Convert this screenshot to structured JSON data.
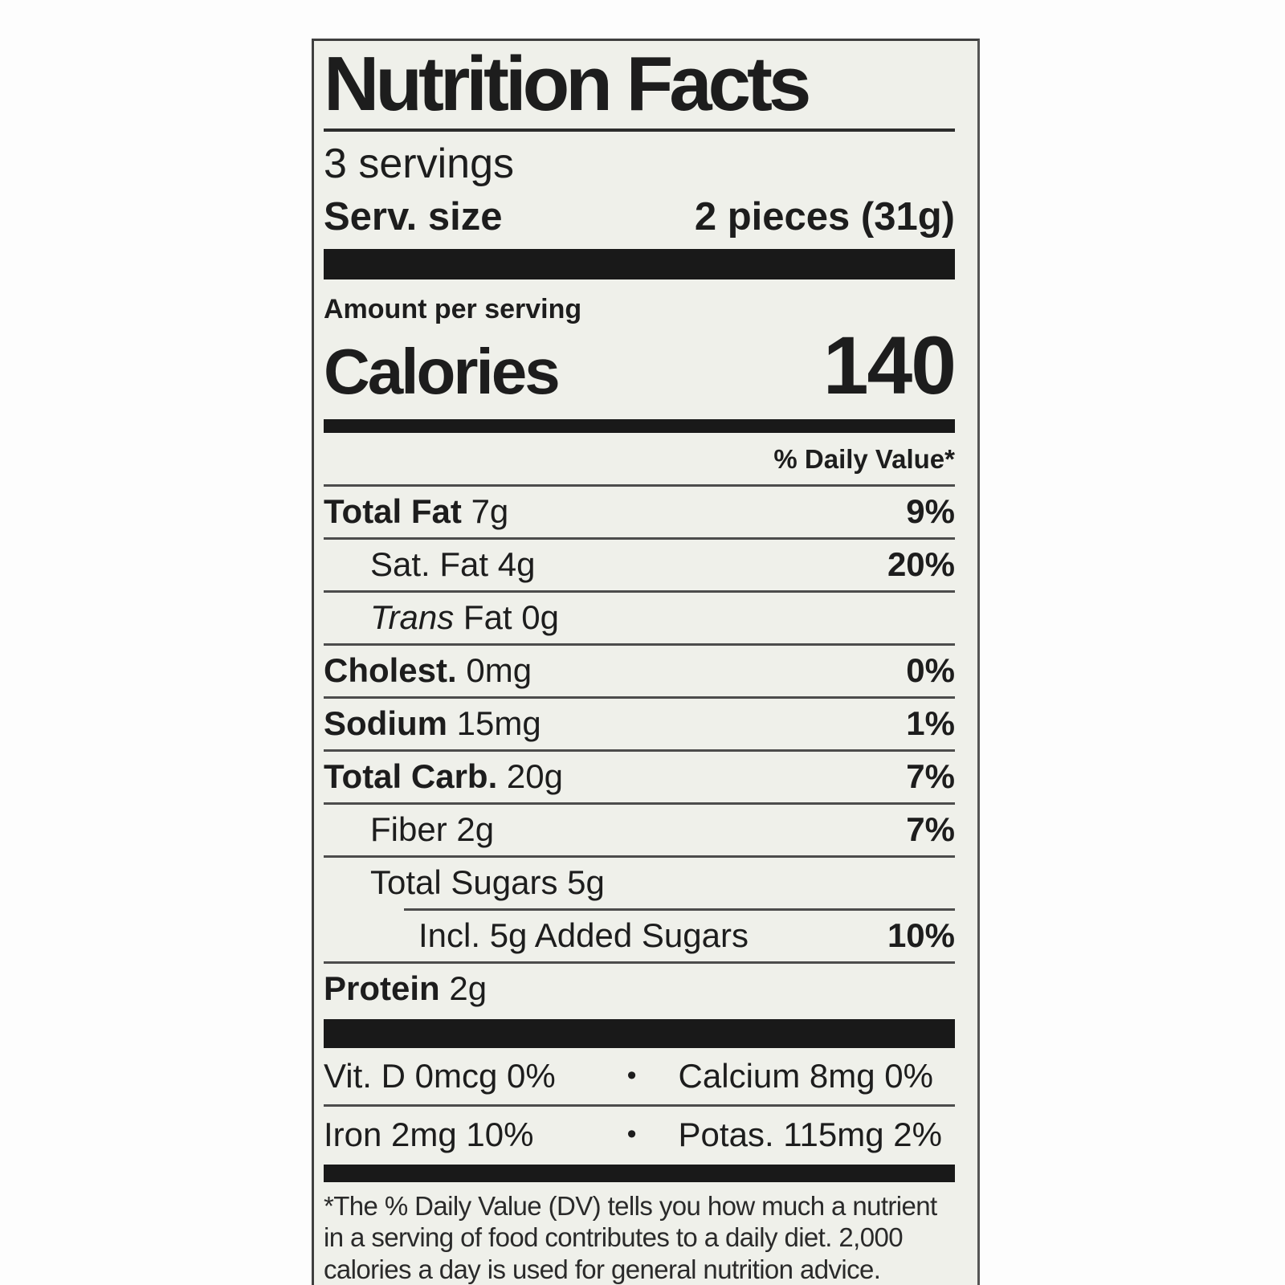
{
  "colors": {
    "label_background": "#eff0ea",
    "bar_black": "#191919",
    "text": "#1d1d1d"
  },
  "label": {
    "title": "Nutrition Facts",
    "servings": "3 servings",
    "serv_size": {
      "label": "Serv. size",
      "value": "2 pieces (31g)"
    },
    "amount_per_serving": "Amount per serving",
    "calories": {
      "label": "Calories",
      "value": "140"
    },
    "daily_value_header": "% Daily Value*",
    "rows": [
      {
        "name": "Total Fat",
        "amount": "7g",
        "dv": "9%"
      },
      {
        "name": "Sat. Fat",
        "amount": "4g",
        "dv": "20%"
      },
      {
        "name_italic": "Trans",
        "name": "Fat",
        "amount": "0g",
        "dv": ""
      },
      {
        "name": "Cholest.",
        "amount": "0mg",
        "dv": "0%"
      },
      {
        "name": "Sodium",
        "amount": "15mg",
        "dv": "1%"
      },
      {
        "name": "Total Carb.",
        "amount": "20g",
        "dv": "7%"
      },
      {
        "name": "Fiber",
        "amount": "2g",
        "dv": "7%"
      },
      {
        "name": "Total Sugars",
        "amount": "5g",
        "dv": ""
      },
      {
        "name": "Incl. 5g Added Sugars",
        "amount": "",
        "dv": "10%"
      },
      {
        "name": "Protein",
        "amount": "2g",
        "dv": ""
      }
    ],
    "micronutrients": {
      "row1": {
        "left": "Vit. D 0mcg 0%",
        "bullet": "•",
        "right": "Calcium 8mg 0%"
      },
      "row2": {
        "left": "Iron 2mg 10%",
        "bullet": "•",
        "right": "Potas. 115mg 2%"
      }
    },
    "footnote": "*The % Daily Value (DV) tells you how much a nutrient in a serving of food contributes to a daily diet. 2,000 calories a day is used for general nutrition advice."
  }
}
